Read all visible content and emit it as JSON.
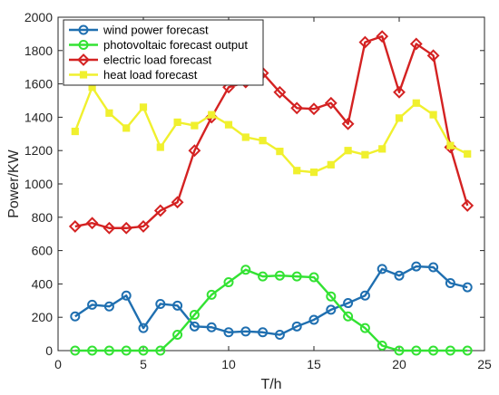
{
  "chart_data": {
    "type": "line",
    "title": "",
    "xlabel": "T/h",
    "ylabel": "Power/KW",
    "xlim": [
      0,
      25
    ],
    "ylim": [
      0,
      2000
    ],
    "xticks": [
      0,
      5,
      10,
      15,
      20,
      25
    ],
    "yticks": [
      0,
      200,
      400,
      600,
      800,
      1000,
      1200,
      1400,
      1600,
      1800,
      2000
    ],
    "grid": false,
    "legend_position": "top-left",
    "x": [
      1,
      2,
      3,
      4,
      5,
      6,
      7,
      8,
      9,
      10,
      11,
      12,
      13,
      14,
      15,
      16,
      17,
      18,
      19,
      20,
      21,
      22,
      23,
      24
    ],
    "series": [
      {
        "name": "wind power forecast",
        "color": "#1f6fb0",
        "marker": "circle",
        "values": [
          205,
          275,
          265,
          330,
          135,
          280,
          270,
          145,
          140,
          110,
          115,
          110,
          95,
          145,
          185,
          245,
          285,
          330,
          490,
          450,
          505,
          500,
          405,
          380
        ]
      },
      {
        "name": "photovoltaic forecast output",
        "color": "#33e233",
        "marker": "circle",
        "values": [
          0,
          0,
          0,
          0,
          0,
          0,
          95,
          215,
          335,
          410,
          485,
          445,
          450,
          445,
          440,
          325,
          205,
          135,
          30,
          0,
          0,
          0,
          0,
          0
        ]
      },
      {
        "name": "electric load forecast",
        "color": "#d42222",
        "marker": "diamond",
        "values": [
          745,
          765,
          735,
          735,
          745,
          840,
          890,
          1200,
          1400,
          1580,
          1610,
          1665,
          1550,
          1455,
          1450,
          1485,
          1360,
          1850,
          1885,
          1550,
          1840,
          1770,
          1220,
          870
        ]
      },
      {
        "name": "heat load forecast",
        "color": "#f0f02e",
        "marker": "square",
        "values": [
          1315,
          1580,
          1425,
          1335,
          1460,
          1220,
          1370,
          1350,
          1415,
          1355,
          1280,
          1260,
          1195,
          1080,
          1070,
          1115,
          1200,
          1175,
          1210,
          1395,
          1485,
          1415,
          1230,
          1180
        ]
      }
    ]
  }
}
